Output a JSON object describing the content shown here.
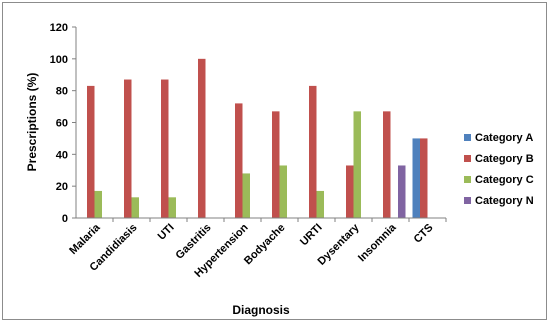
{
  "chart_data": {
    "type": "bar",
    "title": "",
    "xlabel": "Diagnosis",
    "ylabel": "Prescriptions (%)",
    "ylim": [
      0,
      120
    ],
    "yticks": [
      0,
      20,
      40,
      60,
      80,
      100,
      120
    ],
    "grid": false,
    "legend_position": "right",
    "categories": [
      "Malaria",
      "Candidiasis",
      "UTI",
      "Gastritis",
      "Hypertension",
      "Bodyache",
      "URTI",
      "Dysentary",
      "Insomnia",
      "CTS"
    ],
    "series": [
      {
        "name": "Category A",
        "color": "#4F81BD",
        "values": [
          0,
          0,
          0,
          0,
          0,
          0,
          0,
          0,
          0,
          50
        ]
      },
      {
        "name": "Category B",
        "color": "#C0504D",
        "values": [
          83,
          87,
          87,
          100,
          72,
          67,
          83,
          33,
          67,
          50
        ]
      },
      {
        "name": "Category C",
        "color": "#9BBB59",
        "values": [
          17,
          13,
          13,
          0,
          28,
          33,
          17,
          67,
          0,
          0
        ]
      },
      {
        "name": "Category N",
        "color": "#8064A2",
        "values": [
          0,
          0,
          0,
          0,
          0,
          0,
          0,
          0,
          33,
          0
        ]
      }
    ]
  }
}
